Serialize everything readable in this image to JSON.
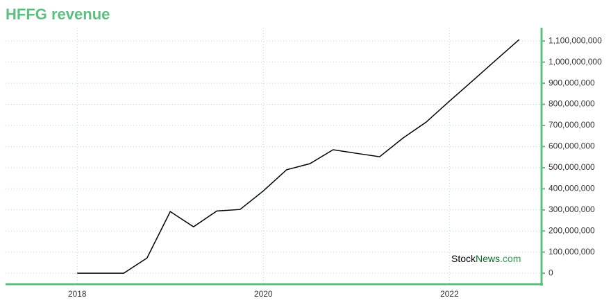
{
  "chart_data": {
    "type": "line",
    "title": "HFFG revenue",
    "watermark": [
      "Stock",
      "News",
      ".com"
    ],
    "x": [
      2018.0,
      2018.25,
      2018.5,
      2018.75,
      2019.0,
      2019.25,
      2019.5,
      2019.75,
      2020.0,
      2020.25,
      2020.5,
      2020.75,
      2021.0,
      2021.25,
      2021.5,
      2021.75,
      2022.0,
      2022.25,
      2022.5,
      2022.75
    ],
    "series": [
      {
        "name": "HFFG revenue",
        "color": "#000000",
        "values": [
          0,
          0,
          0,
          72000000,
          292000000,
          220000000,
          295000000,
          302000000,
          390000000,
          490000000,
          519000000,
          585000000,
          568000000,
          552000000,
          640000000,
          716000000,
          815000000,
          912000000,
          1010000000,
          1107000000
        ]
      }
    ],
    "xlim": [
      2017.23,
      2022.99
    ],
    "xticks": [
      2018,
      2020,
      2022
    ],
    "ylim": [
      -52000000,
      1163000000
    ],
    "yticks": [
      0,
      {
        "value": 100000000,
        "label": "100,000,000"
      },
      {
        "value": 200000000,
        "label": "200,000,000"
      },
      {
        "value": 300000000,
        "label": "300,000,000"
      },
      {
        "value": 400000000,
        "label": "400,000,000"
      },
      {
        "value": 500000000,
        "label": "500,000,000"
      },
      {
        "value": 600000000,
        "label": "600,000,000"
      },
      {
        "value": 700000000,
        "label": "700,000,000"
      },
      {
        "value": 800000000,
        "label": "800,000,000"
      },
      {
        "value": 900000000,
        "label": "900,000,000"
      },
      {
        "value": 1000000000,
        "label": "1,000,000,000"
      },
      {
        "value": 1100000000,
        "label": "1,100,000,000"
      }
    ],
    "grid": true,
    "axis_color": "#5cbf7f"
  }
}
